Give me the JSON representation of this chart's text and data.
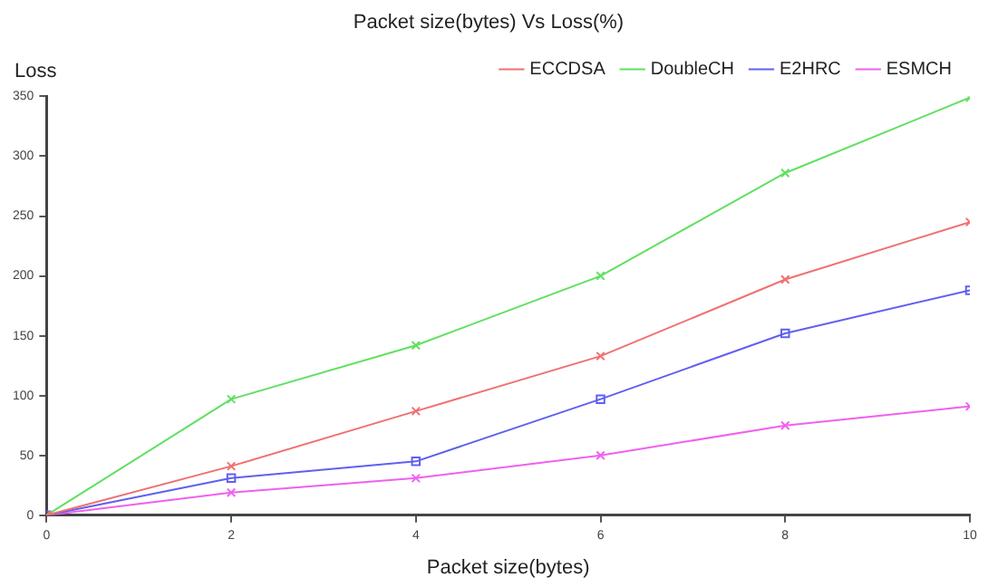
{
  "chart_data": {
    "type": "line",
    "title": "Packet size(bytes) Vs Loss(%)",
    "xlabel": "Packet size(bytes)",
    "ylabel": "Loss",
    "x": [
      0,
      2,
      4,
      6,
      8,
      10
    ],
    "xlim": [
      0,
      10
    ],
    "xticks": [
      0,
      2,
      4,
      6,
      8,
      10
    ],
    "ylim": [
      0,
      350
    ],
    "yticks": [
      0,
      50,
      100,
      150,
      200,
      250,
      300,
      350
    ],
    "grid": false,
    "legend": "top right",
    "series": [
      {
        "name": "ECCDSA",
        "color": "#f07070",
        "marker": "cross",
        "values": [
          0,
          41,
          87,
          133,
          197,
          245
        ]
      },
      {
        "name": "DoubleCH",
        "color": "#60e060",
        "marker": "cross",
        "values": [
          0,
          97,
          142,
          200,
          286,
          349
        ]
      },
      {
        "name": "E2HRC",
        "color": "#6060f0",
        "marker": "square",
        "values": [
          0,
          31,
          45,
          97,
          152,
          188
        ]
      },
      {
        "name": "ESMCH",
        "color": "#f060f0",
        "marker": "cross",
        "values": [
          0,
          19,
          31,
          50,
          75,
          91
        ]
      }
    ]
  }
}
